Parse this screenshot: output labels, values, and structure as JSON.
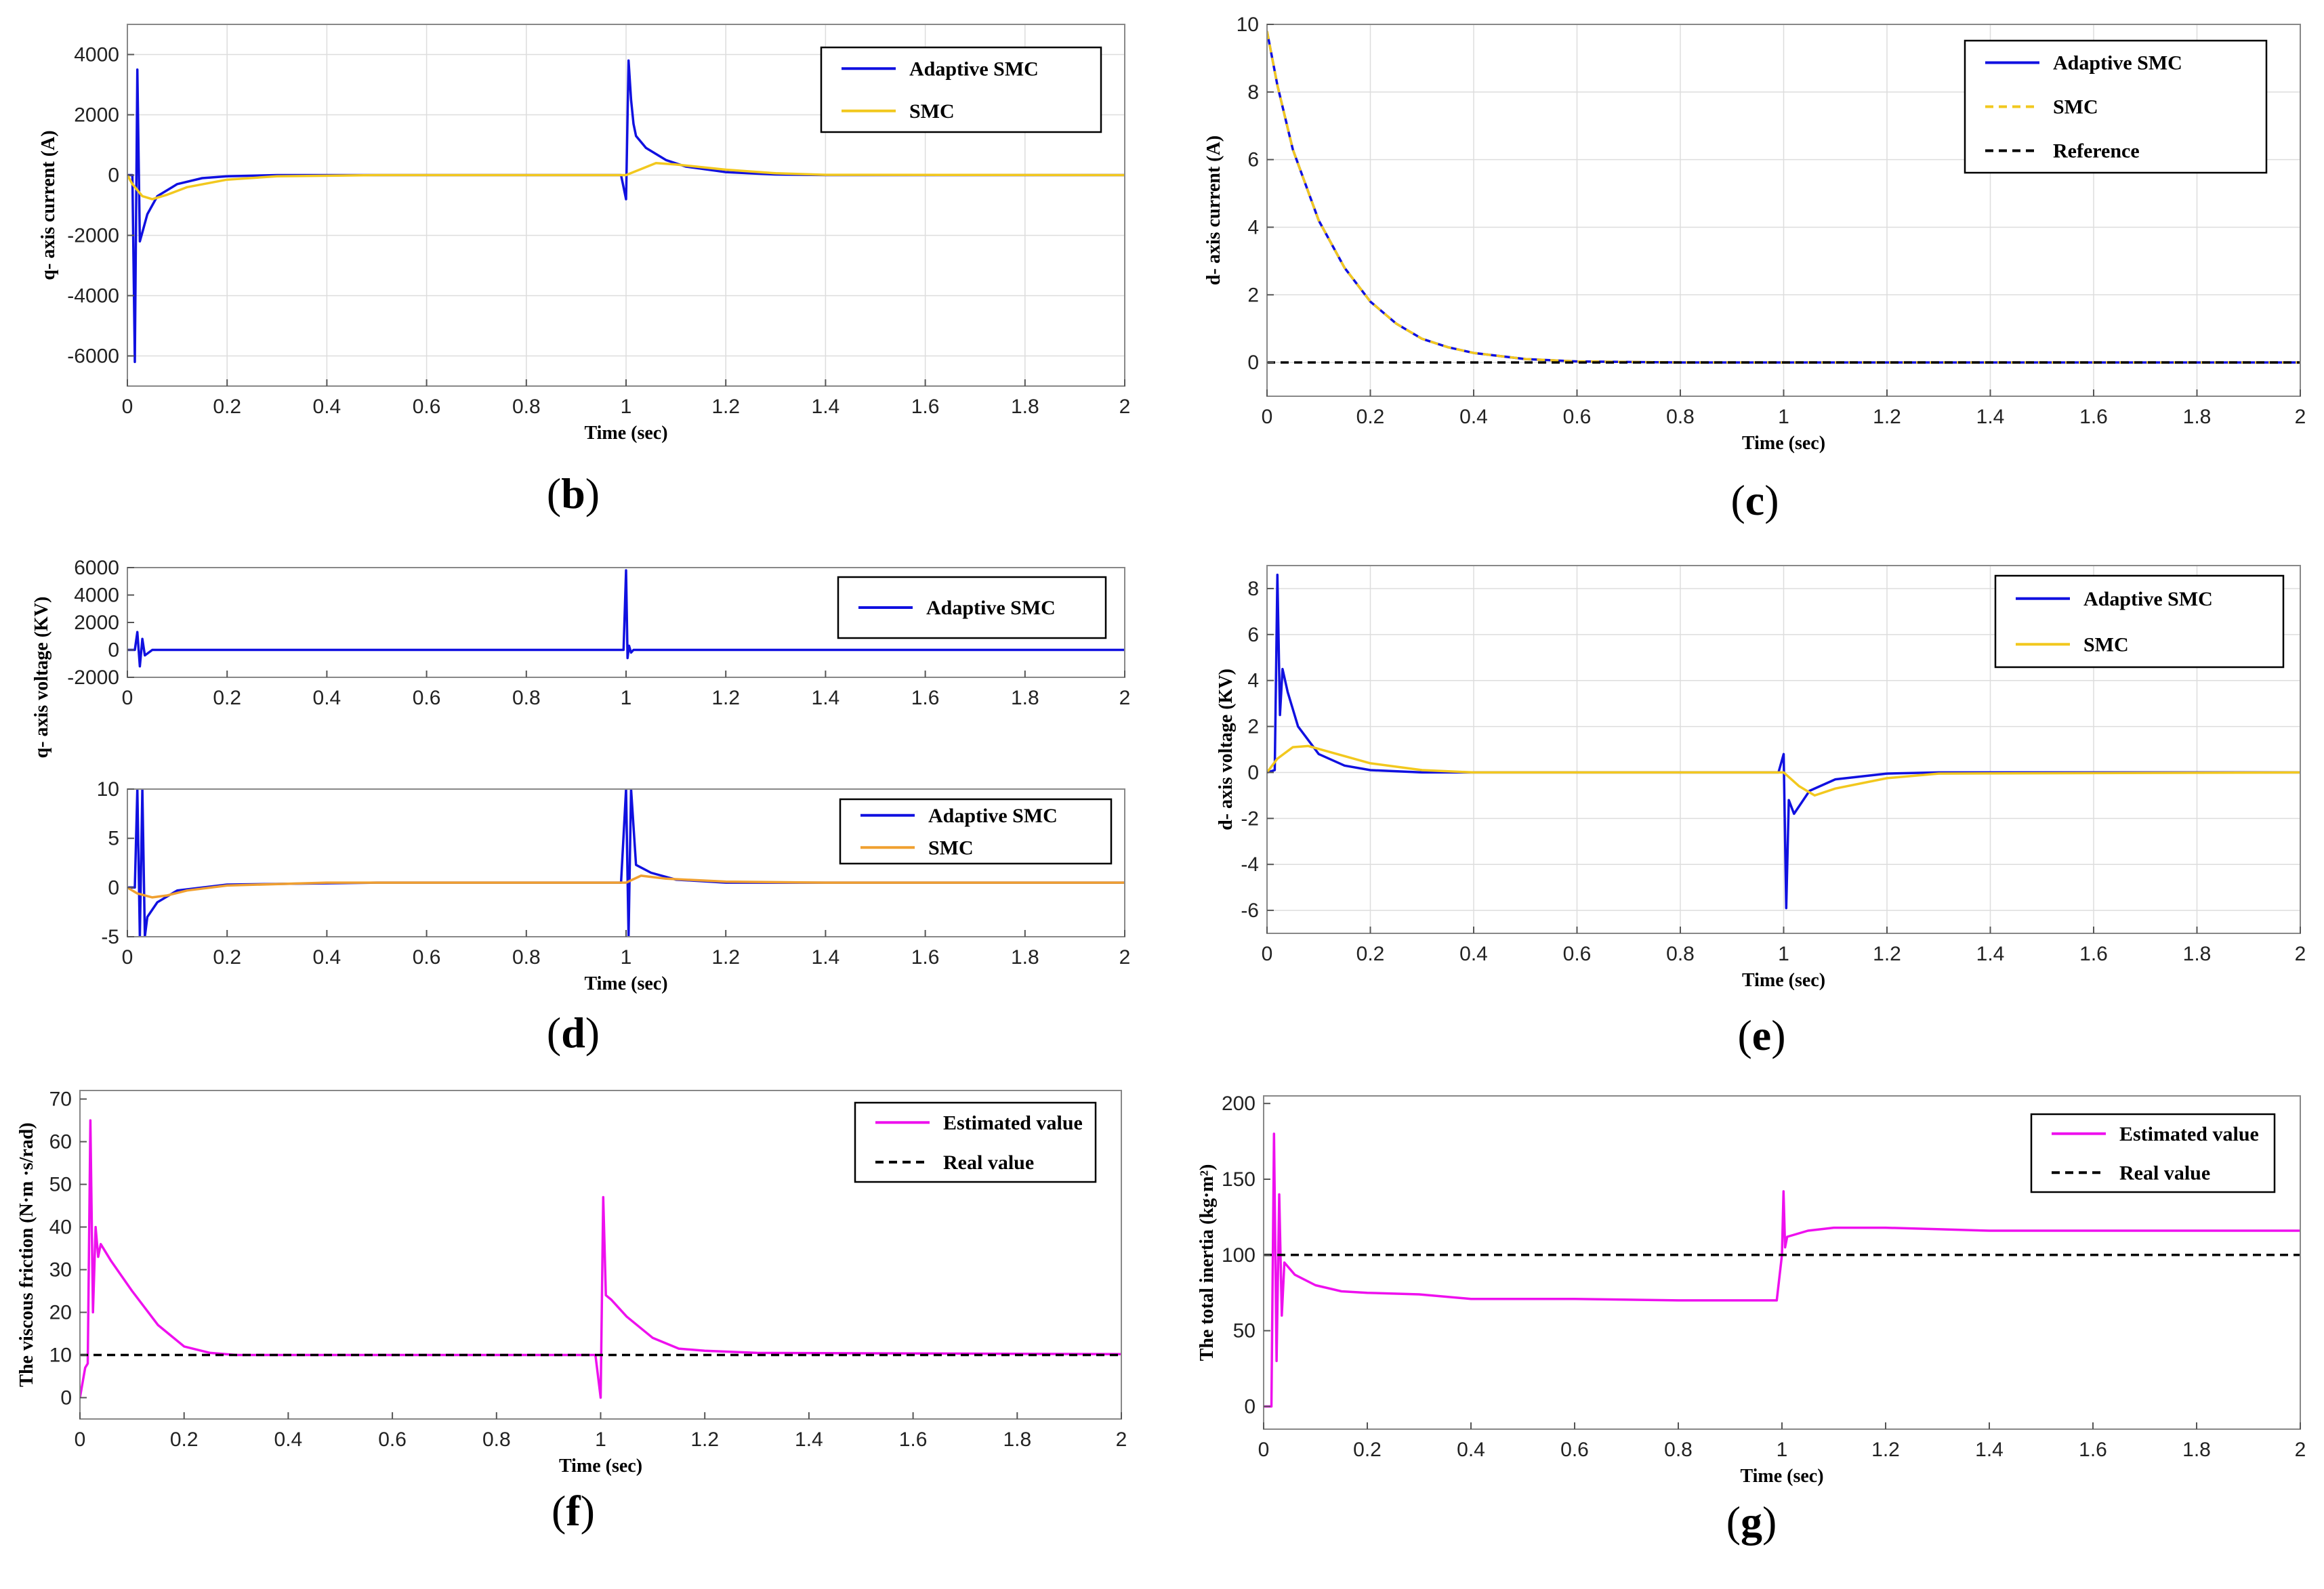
{
  "colors": {
    "adaptive": "#1010e0",
    "smc": "#f2c81e",
    "smc_orange": "#f0a030",
    "estimated": "#ee10ee",
    "reference": "#000000",
    "axes_border": "#888888",
    "grid": "#dddddd"
  },
  "chart_data": [
    {
      "id": "b",
      "panel_label": "b",
      "type": "line",
      "xlabel": "Time (sec)",
      "ylabel": "q- axis current (A)",
      "xlim": [
        0,
        2
      ],
      "ylim": [
        -7000,
        5000
      ],
      "xticks": [
        0,
        0.2,
        0.4,
        0.6,
        0.8,
        1,
        1.2,
        1.4,
        1.6,
        1.8,
        2
      ],
      "yticks": [
        -6000,
        -4000,
        -2000,
        0,
        2000,
        4000
      ],
      "grid": true,
      "legend": "top-right",
      "series": [
        {
          "name": "Adaptive SMC",
          "color_key": "adaptive",
          "dash": false,
          "x": [
            0,
            0.01,
            0.015,
            0.02,
            0.025,
            0.03,
            0.04,
            0.06,
            0.1,
            0.15,
            0.2,
            0.3,
            0.5,
            0.99,
            1.0,
            1.005,
            1.01,
            1.015,
            1.02,
            1.04,
            1.08,
            1.12,
            1.2,
            1.3,
            1.4,
            2
          ],
          "y": [
            0,
            0,
            -6200,
            3500,
            -2200,
            -1900,
            -1300,
            -700,
            -300,
            -100,
            -40,
            0,
            0,
            0,
            -800,
            3800,
            2500,
            1700,
            1300,
            900,
            500,
            280,
            100,
            20,
            0,
            0
          ]
        },
        {
          "name": "SMC",
          "color_key": "smc",
          "dash": false,
          "x": [
            0,
            0.01,
            0.03,
            0.05,
            0.08,
            0.12,
            0.2,
            0.3,
            0.5,
            1.0,
            1.03,
            1.06,
            1.1,
            1.2,
            1.3,
            1.4,
            2
          ],
          "y": [
            0,
            -300,
            -700,
            -800,
            -650,
            -400,
            -150,
            -40,
            0,
            0,
            200,
            400,
            350,
            180,
            60,
            10,
            0
          ]
        }
      ]
    },
    {
      "id": "c",
      "panel_label": "c",
      "type": "line",
      "xlabel": "Time (sec)",
      "ylabel": "d- axis current (A)",
      "xlim": [
        0,
        2
      ],
      "ylim": [
        -1,
        10
      ],
      "xticks": [
        0,
        0.2,
        0.4,
        0.6,
        0.8,
        1,
        1.2,
        1.4,
        1.6,
        1.8,
        2
      ],
      "yticks": [
        0,
        2,
        4,
        6,
        8,
        10
      ],
      "grid": true,
      "legend": "top-right",
      "series": [
        {
          "name": "Adaptive SMC",
          "color_key": "adaptive",
          "dash": false,
          "x": [
            0,
            0.02,
            0.05,
            0.1,
            0.15,
            0.2,
            0.25,
            0.3,
            0.35,
            0.4,
            0.5,
            0.6,
            0.8,
            1,
            2
          ],
          "y": [
            9.8,
            8.2,
            6.3,
            4.2,
            2.8,
            1.8,
            1.15,
            0.7,
            0.45,
            0.28,
            0.1,
            0.03,
            0,
            0,
            0
          ]
        },
        {
          "name": "SMC",
          "color_key": "smc",
          "dash": true,
          "x": [
            0,
            0.02,
            0.05,
            0.1,
            0.15,
            0.2,
            0.25,
            0.3,
            0.35,
            0.4,
            0.5,
            0.6,
            0.8,
            1,
            2
          ],
          "y": [
            9.8,
            8.2,
            6.3,
            4.2,
            2.8,
            1.8,
            1.15,
            0.7,
            0.45,
            0.28,
            0.1,
            0.03,
            0,
            0,
            0
          ]
        },
        {
          "name": "Reference",
          "color_key": "reference",
          "dash": true,
          "x": [
            0,
            2
          ],
          "y": [
            0,
            0
          ]
        }
      ]
    },
    {
      "id": "d_top",
      "panel_label": "",
      "type": "line",
      "xlabel": "",
      "ylabel": "",
      "xlim": [
        0,
        2
      ],
      "ylim": [
        -2000,
        6000
      ],
      "xticks": [
        0,
        0.2,
        0.4,
        0.6,
        0.8,
        1,
        1.2,
        1.4,
        1.6,
        1.8,
        2
      ],
      "yticks": [
        -2000,
        0,
        2000,
        4000,
        6000
      ],
      "grid": false,
      "legend": "top-right",
      "series": [
        {
          "name": "Adaptive SMC",
          "color_key": "adaptive",
          "dash": false,
          "x": [
            0,
            0.015,
            0.02,
            0.025,
            0.03,
            0.035,
            0.05,
            0.99,
            0.995,
            1.0,
            1.003,
            1.006,
            1.01,
            1.015,
            2
          ],
          "y": [
            0,
            0,
            1300,
            -1200,
            800,
            -400,
            0,
            0,
            0,
            5800,
            -600,
            300,
            -200,
            0,
            0
          ]
        }
      ]
    },
    {
      "id": "d_bottom",
      "panel_label": "d",
      "type": "line",
      "xlabel": "Time (sec)",
      "ylabel": "q- axis voltage (KV)",
      "xlim": [
        0,
        2
      ],
      "ylim": [
        -5,
        10
      ],
      "xticks": [
        0,
        0.2,
        0.4,
        0.6,
        0.8,
        1,
        1.2,
        1.4,
        1.6,
        1.8,
        2
      ],
      "yticks": [
        -5,
        0,
        5,
        10
      ],
      "grid": false,
      "legend": "top-right",
      "series": [
        {
          "name": "Adaptive SMC",
          "color_key": "adaptive",
          "dash": false,
          "x": [
            0,
            0.015,
            0.02,
            0.025,
            0.03,
            0.035,
            0.04,
            0.06,
            0.1,
            0.2,
            0.5,
            0.99,
            1.0,
            1.005,
            1.01,
            1.02,
            1.05,
            1.1,
            1.2,
            1.3,
            2
          ],
          "y": [
            0,
            0,
            10,
            -5,
            10,
            -5,
            -3,
            -1.5,
            -0.3,
            0.3,
            0.5,
            0.5,
            10,
            -5,
            10,
            2.3,
            1.5,
            0.8,
            0.5,
            0.5,
            0.5
          ]
        },
        {
          "name": "SMC",
          "color_key": "smc_orange",
          "dash": false,
          "x": [
            0,
            0.02,
            0.05,
            0.08,
            0.12,
            0.2,
            0.4,
            1.0,
            1.03,
            1.08,
            1.2,
            1.4,
            2
          ],
          "y": [
            0,
            -0.6,
            -1.0,
            -0.8,
            -0.3,
            0.2,
            0.5,
            0.5,
            1.2,
            0.9,
            0.6,
            0.5,
            0.5
          ]
        }
      ]
    },
    {
      "id": "e",
      "panel_label": "e",
      "type": "line",
      "xlabel": "Time (sec)",
      "ylabel": "d- axis voltage (KV)",
      "xlim": [
        0,
        2
      ],
      "ylim": [
        -7,
        9
      ],
      "xticks": [
        0,
        0.2,
        0.4,
        0.6,
        0.8,
        1,
        1.2,
        1.4,
        1.6,
        1.8,
        2
      ],
      "yticks": [
        -6,
        -4,
        -2,
        0,
        2,
        4,
        6,
        8
      ],
      "grid": true,
      "legend": "top-right",
      "series": [
        {
          "name": "Adaptive SMC",
          "color_key": "adaptive",
          "dash": false,
          "x": [
            0,
            0.015,
            0.02,
            0.025,
            0.03,
            0.04,
            0.06,
            0.1,
            0.15,
            0.2,
            0.3,
            0.4,
            0.99,
            1.0,
            1.005,
            1.01,
            1.02,
            1.05,
            1.1,
            1.2,
            1.3,
            2
          ],
          "y": [
            0,
            0.1,
            8.6,
            2.5,
            4.5,
            3.5,
            2.0,
            0.8,
            0.3,
            0.1,
            0,
            0,
            0,
            0.8,
            -5.9,
            -1.2,
            -1.8,
            -0.8,
            -0.3,
            -0.05,
            0,
            0
          ]
        },
        {
          "name": "SMC",
          "color_key": "smc",
          "dash": false,
          "x": [
            0,
            0.02,
            0.05,
            0.08,
            0.12,
            0.2,
            0.3,
            0.4,
            1.0,
            1.03,
            1.06,
            1.1,
            1.2,
            1.3,
            2
          ],
          "y": [
            0,
            0.6,
            1.1,
            1.15,
            0.9,
            0.4,
            0.1,
            0,
            0,
            -0.6,
            -1.0,
            -0.7,
            -0.25,
            -0.05,
            0
          ]
        }
      ]
    },
    {
      "id": "f",
      "panel_label": "f",
      "type": "line",
      "xlabel": "Time (sec)",
      "ylabel": "The viscous friction (N·m ·s/rad)",
      "xlim": [
        0,
        2
      ],
      "ylim": [
        -5,
        72
      ],
      "xticks": [
        0,
        0.2,
        0.4,
        0.6,
        0.8,
        1,
        1.2,
        1.4,
        1.6,
        1.8,
        2
      ],
      "yticks": [
        0,
        10,
        20,
        30,
        40,
        50,
        60,
        70
      ],
      "grid": false,
      "legend": "top-right",
      "series": [
        {
          "name": "Estimated value",
          "color_key": "estimated",
          "dash": false,
          "x": [
            0,
            0.01,
            0.015,
            0.02,
            0.025,
            0.03,
            0.035,
            0.04,
            0.06,
            0.1,
            0.15,
            0.2,
            0.25,
            0.3,
            0.99,
            1.0,
            1.005,
            1.01,
            1.02,
            1.05,
            1.1,
            1.15,
            1.2,
            1.3,
            2
          ],
          "y": [
            0,
            7,
            8,
            65,
            20,
            40,
            33,
            36,
            32,
            25,
            17,
            12,
            10.5,
            10,
            10,
            0,
            47,
            24,
            23,
            19,
            14,
            11.5,
            11,
            10.5,
            10.2
          ]
        },
        {
          "name": "Real value",
          "color_key": "reference",
          "dash": true,
          "x": [
            0,
            2
          ],
          "y": [
            10,
            10
          ]
        }
      ]
    },
    {
      "id": "g",
      "panel_label": "g",
      "type": "line",
      "xlabel": "Time (sec)",
      "ylabel": "The total inertia (kg·m²)",
      "xlim": [
        0,
        2
      ],
      "ylim": [
        -15,
        205
      ],
      "xticks": [
        0,
        0.2,
        0.4,
        0.6,
        0.8,
        1,
        1.2,
        1.4,
        1.6,
        1.8,
        2
      ],
      "yticks": [
        0,
        50,
        100,
        150,
        200
      ],
      "grid": false,
      "legend": "top-right",
      "series": [
        {
          "name": "Estimated value",
          "color_key": "estimated",
          "dash": false,
          "x": [
            0,
            0.015,
            0.02,
            0.025,
            0.03,
            0.035,
            0.04,
            0.06,
            0.1,
            0.15,
            0.2,
            0.3,
            0.4,
            0.6,
            0.8,
            0.99,
            1.0,
            1.003,
            1.006,
            1.01,
            1.05,
            1.1,
            1.2,
            1.3,
            1.4,
            2
          ],
          "y": [
            0,
            0,
            180,
            30,
            140,
            60,
            95,
            87,
            80,
            76,
            75,
            74,
            71,
            71,
            70,
            70,
            100,
            142,
            105,
            112,
            116,
            118,
            118,
            117,
            116,
            116
          ]
        },
        {
          "name": "Real value",
          "color_key": "reference",
          "dash": true,
          "x": [
            0,
            2
          ],
          "y": [
            100,
            100
          ]
        }
      ]
    }
  ]
}
